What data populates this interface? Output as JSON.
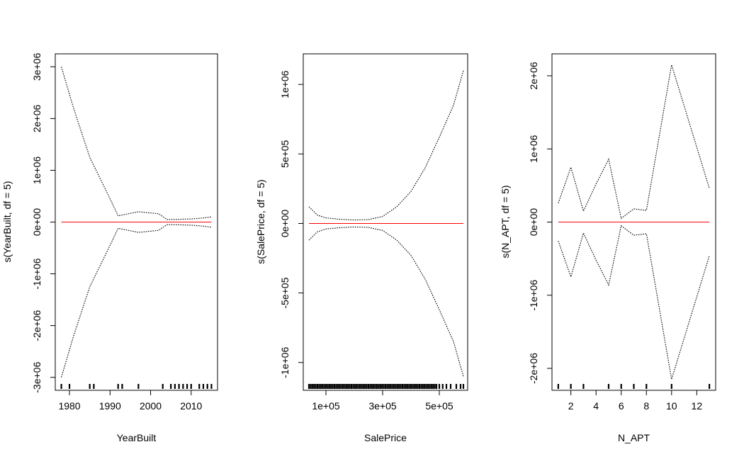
{
  "colors": {
    "fit": "#ff0000",
    "band": "#000000",
    "frame": "#000000"
  },
  "chart_data": [
    {
      "type": "line",
      "title": "",
      "xlabel": "YearBuilt",
      "ylabel": "s(YearBuilt, df = 5)",
      "xlim": [
        1976.5,
        2016.5
      ],
      "ylim": [
        -3250000.0,
        3250000.0
      ],
      "xticks": [
        1980,
        1990,
        2000,
        2010
      ],
      "xtick_labels": [
        "1980",
        "1990",
        "2000",
        "2010"
      ],
      "yticks": [
        -3000000.0,
        -2000000.0,
        -1000000.0,
        0,
        1000000.0,
        2000000.0,
        3000000.0
      ],
      "ytick_labels": [
        "-3e+06",
        "-2e+06",
        "-1e+06",
        "0e+00",
        "1e+06",
        "2e+06",
        "3e+06"
      ],
      "series": [
        {
          "role": "fit",
          "x": [
            1978,
            2015
          ],
          "y": [
            0,
            0
          ]
        },
        {
          "role": "upper",
          "x": [
            1978,
            1981,
            1985,
            1990,
            1992,
            1997,
            2002,
            2004,
            2006,
            2010,
            2013,
            2015
          ],
          "y": [
            3000000.0,
            2200000.0,
            1250000.0,
            450000.0,
            120000.0,
            200000.0,
            160000.0,
            50000.0,
            50000.0,
            60000.0,
            80000.0,
            100000.0
          ]
        },
        {
          "role": "lower",
          "x": [
            1978,
            1981,
            1985,
            1990,
            1992,
            1997,
            2002,
            2004,
            2006,
            2010,
            2013,
            2015
          ],
          "y": [
            -3000000.0,
            -2200000.0,
            -1250000.0,
            -450000.0,
            -120000.0,
            -200000.0,
            -160000.0,
            -50000.0,
            -50000.0,
            -60000.0,
            -80000.0,
            -100000.0
          ]
        }
      ],
      "rug": [
        1978,
        1980,
        1985,
        1986,
        1992,
        1993,
        1997,
        2003,
        2005,
        2006,
        2007,
        2008,
        2009,
        2010,
        2012,
        2013,
        2014,
        2015
      ]
    },
    {
      "type": "line",
      "title": "",
      "xlabel": "SalePrice",
      "ylabel": "s(SalePrice, df = 5)",
      "xlim": [
        20000,
        600000
      ],
      "ylim": [
        -1200000.0,
        1220000.0
      ],
      "xticks": [
        100000,
        300000,
        500000
      ],
      "xtick_labels": [
        "1e+05",
        "3e+05",
        "5e+05"
      ],
      "yticks": [
        -1000000.0,
        -500000.0,
        0,
        500000.0,
        1000000.0
      ],
      "ytick_labels": [
        "-1e+06",
        "-5e+05",
        "0e+00",
        "5e+05",
        "1e+06"
      ],
      "series": [
        {
          "role": "fit",
          "x": [
            40000,
            585000
          ],
          "y": [
            0,
            0
          ]
        },
        {
          "role": "upper",
          "x": [
            40000,
            70000,
            100000,
            150000,
            200000,
            250000,
            300000,
            350000,
            400000,
            450000,
            500000,
            550000,
            585000
          ],
          "y": [
            120000.0,
            60000.0,
            40000.0,
            30000.0,
            25000.0,
            28000.0,
            50000.0,
            120000.0,
            230000.0,
            400000.0,
            620000.0,
            850000.0,
            1100000.0
          ]
        },
        {
          "role": "lower",
          "x": [
            40000,
            70000,
            100000,
            150000,
            200000,
            250000,
            300000,
            350000,
            400000,
            450000,
            500000,
            550000,
            585000
          ],
          "y": [
            -120000.0,
            -60000.0,
            -40000.0,
            -30000.0,
            -25000.0,
            -28000.0,
            -50000.0,
            -120000.0,
            -230000.0,
            -400000.0,
            -620000.0,
            -850000.0,
            -1100000.0
          ]
        }
      ],
      "rug": [
        40000,
        46000,
        52000,
        58000,
        64000,
        70000,
        76000,
        82000,
        88000,
        94000,
        100000,
        106000,
        112000,
        118000,
        124000,
        130000,
        136000,
        142000,
        148000,
        154000,
        160000,
        166000,
        172000,
        178000,
        184000,
        190000,
        196000,
        202000,
        208000,
        214000,
        220000,
        226000,
        232000,
        238000,
        244000,
        250000,
        256000,
        262000,
        268000,
        274000,
        280000,
        286000,
        292000,
        298000,
        304000,
        310000,
        316000,
        322000,
        328000,
        334000,
        340000,
        346000,
        352000,
        358000,
        364000,
        370000,
        376000,
        382000,
        388000,
        394000,
        400000,
        406000,
        412000,
        418000,
        424000,
        430000,
        436000,
        442000,
        448000,
        454000,
        460000,
        466000,
        472000,
        478000,
        484000,
        490000,
        500000,
        512000,
        525000,
        540000,
        560000,
        575000,
        585000
      ]
    },
    {
      "type": "line",
      "title": "",
      "xlabel": "N_APT",
      "ylabel": "s(N_APT, df = 5)",
      "xlim": [
        0.5,
        13.5
      ],
      "ylim": [
        -2300000.0,
        2300000.0
      ],
      "xticks": [
        2,
        4,
        6,
        8,
        10,
        12
      ],
      "xtick_labels": [
        "2",
        "4",
        "6",
        "8",
        "10",
        "12"
      ],
      "yticks": [
        -2000000.0,
        -1000000.0,
        0,
        1000000.0,
        2000000.0
      ],
      "ytick_labels": [
        "-2e+06",
        "-1e+06",
        "0e+00",
        "1e+06",
        "2e+06"
      ],
      "series": [
        {
          "role": "fit",
          "x": [
            1,
            13
          ],
          "y": [
            0,
            0
          ]
        },
        {
          "role": "upper",
          "x": [
            1,
            2,
            3,
            4,
            5,
            6,
            7,
            8,
            10,
            13
          ],
          "y": [
            260000.0,
            750000.0,
            150000.0,
            520000.0,
            860000.0,
            50000.0,
            180000.0,
            160000.0,
            2150000.0,
            460000.0
          ]
        },
        {
          "role": "lower",
          "x": [
            1,
            2,
            3,
            4,
            5,
            6,
            7,
            8,
            10,
            13
          ],
          "y": [
            -260000.0,
            -750000.0,
            -150000.0,
            -520000.0,
            -860000.0,
            -50000.0,
            -180000.0,
            -160000.0,
            -2150000.0,
            -460000.0
          ]
        }
      ],
      "rug": [
        1,
        2,
        3,
        5,
        6,
        7,
        8,
        10,
        13
      ]
    }
  ]
}
